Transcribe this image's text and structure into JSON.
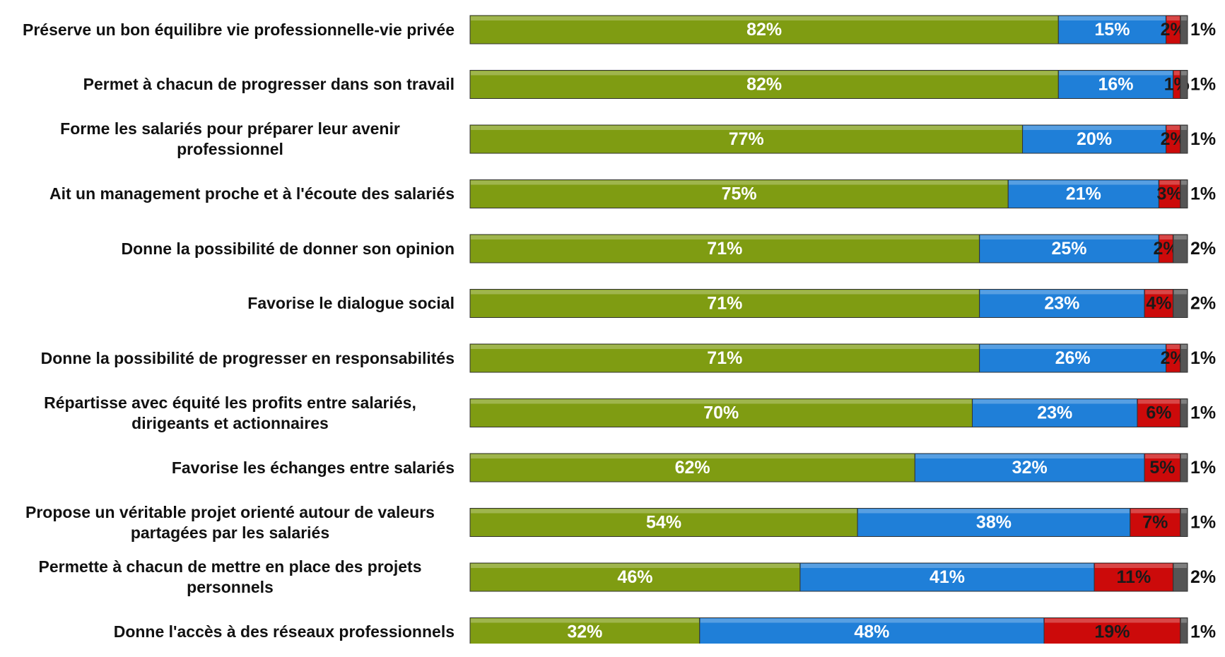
{
  "chart_data": {
    "type": "stacked-bar-horizontal",
    "xlim": [
      0,
      100
    ],
    "categories": [
      "Préserve un bon équilibre vie professionnelle-vie privée",
      "Permet à chacun de progresser dans son travail",
      "Forme les salariés pour préparer leur avenir professionnel",
      "Ait un management proche et à l'écoute des salariés",
      "Donne la possibilité de donner son opinion",
      "Favorise le dialogue social",
      "Donne la possibilité de progresser en responsabilités",
      "Répartisse avec équité les profits entre salariés, dirigeants et actionnaires",
      "Favorise les échanges entre salariés",
      "Propose un véritable projet orienté autour de valeurs partagées par les salariés",
      "Permette à chacun de mettre en place des projets personnels",
      "Donne l'accès à des réseaux professionnels"
    ],
    "series": [
      {
        "color": "#7f9c12",
        "values": [
          82,
          82,
          77,
          75,
          71,
          71,
          71,
          70,
          62,
          54,
          46,
          32
        ],
        "value_labels": [
          "82%",
          "82%",
          "77%",
          "75%",
          "71%",
          "71%",
          "71%",
          "70%",
          "62%",
          "54%",
          "46%",
          "32%"
        ]
      },
      {
        "color": "#1f7fd8",
        "values": [
          15,
          16,
          20,
          21,
          25,
          23,
          26,
          23,
          32,
          38,
          41,
          48
        ],
        "value_labels": [
          "15%",
          "16%",
          "20%",
          "21%",
          "25%",
          "23%",
          "26%",
          "23%",
          "32%",
          "38%",
          "41%",
          "48%"
        ]
      },
      {
        "color": "#cc0a0a",
        "values": [
          2,
          1,
          2,
          3,
          2,
          4,
          2,
          6,
          5,
          7,
          11,
          19
        ],
        "value_labels": [
          "2%",
          "1%",
          "2%",
          "3%",
          "2%",
          "4%",
          "2%",
          "6%",
          "5%",
          "7%",
          "11%",
          "19%"
        ]
      },
      {
        "color": "#555555",
        "values": [
          1,
          1,
          1,
          1,
          2,
          2,
          1,
          1,
          1,
          1,
          2,
          1
        ],
        "value_labels": [
          "1%",
          "1%",
          "1%",
          "1%",
          "2%",
          "2%",
          "1%",
          "1%",
          "1%",
          "1%",
          "2%",
          "1%"
        ]
      }
    ]
  }
}
